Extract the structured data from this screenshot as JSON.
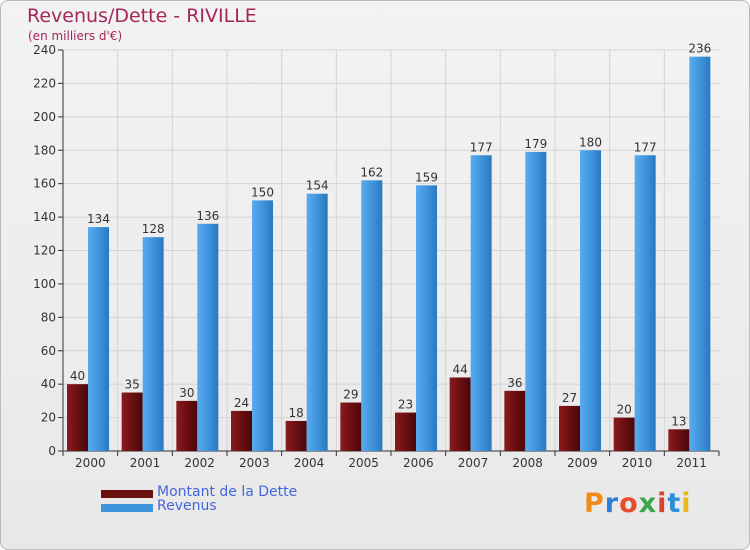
{
  "header": {
    "title": "Revenus/Dette - RIVILLE",
    "subtitle": "(en milliers d'€)"
  },
  "legend": {
    "items": [
      {
        "label": "Montant de la Dette",
        "color": "#6b0f12"
      },
      {
        "label": "Revenus",
        "color": "#3f95dc"
      }
    ]
  },
  "logo": {
    "text": "Proxiti",
    "colors": [
      "#f08a1c",
      "#2e7fd6",
      "#e84d2a",
      "#3aa54a",
      "#d8422e",
      "#2a8fd8",
      "#e8b81c"
    ]
  },
  "chart_data": {
    "type": "bar",
    "categories": [
      "2000",
      "2001",
      "2002",
      "2003",
      "2004",
      "2005",
      "2006",
      "2007",
      "2008",
      "2009",
      "2010",
      "2011"
    ],
    "series": [
      {
        "name": "Montant de la Dette",
        "color": "#6b0f12",
        "values": [
          40,
          35,
          30,
          24,
          18,
          29,
          23,
          44,
          36,
          27,
          20,
          13
        ]
      },
      {
        "name": "Revenus",
        "color": "#3f95dc",
        "values": [
          134,
          128,
          136,
          150,
          154,
          162,
          159,
          177,
          179,
          180,
          177,
          236
        ]
      }
    ],
    "ylim": [
      0,
      240
    ],
    "yticks": [
      0,
      20,
      40,
      60,
      80,
      100,
      120,
      140,
      160,
      180,
      200,
      220,
      240
    ],
    "grid": true
  }
}
